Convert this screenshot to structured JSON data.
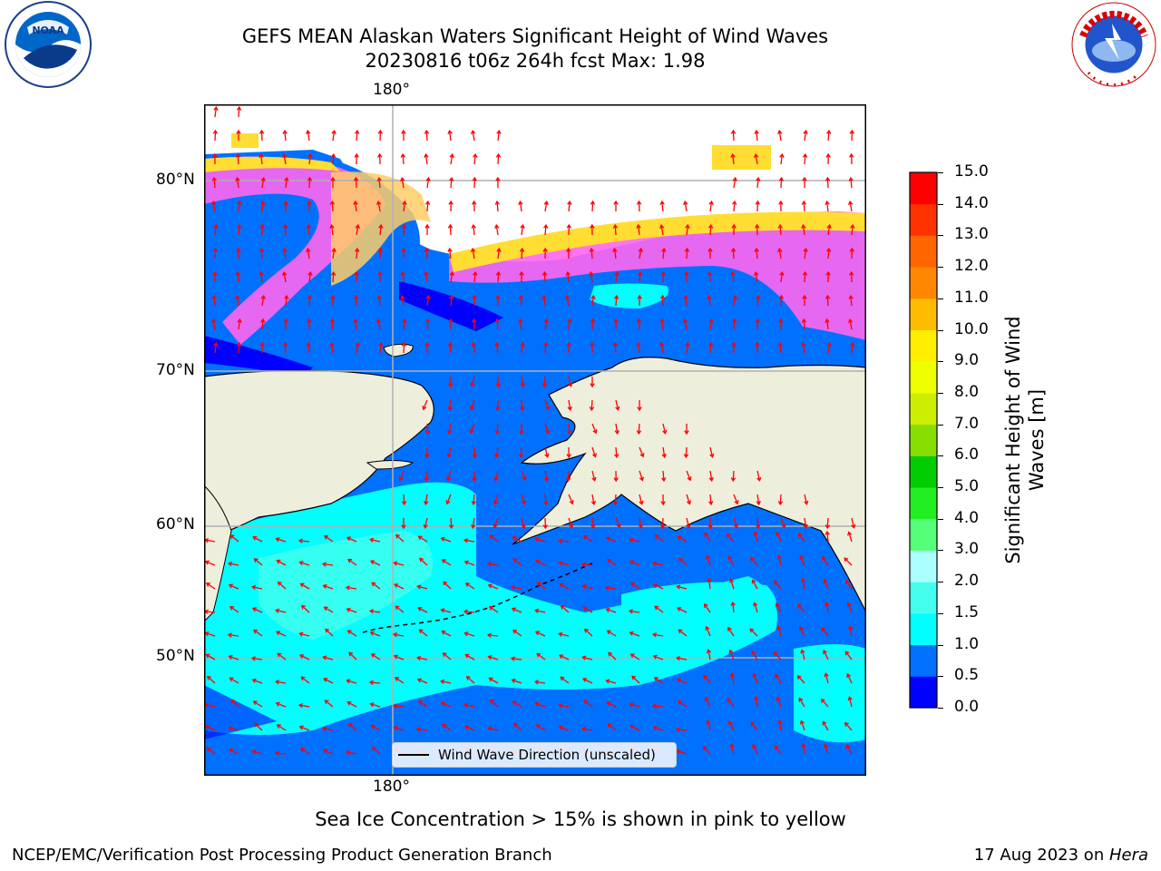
{
  "title": {
    "line1": "GEFS MEAN Alaskan Waters Significant Height of Wind Waves",
    "line2": "20230816 t06z 264h fcst   Max: 1.98"
  },
  "logos": {
    "left": {
      "name": "NOAA",
      "ring_text": "NATIONAL OCEANIC AND ATMOSPHERIC ADMINISTRATION · U.S. DEPARTMENT OF COMMERCE"
    },
    "right": {
      "name": "National Weather Service",
      "ring_text": "NATIONAL WEATHER SERVICE"
    }
  },
  "map": {
    "lon_label_top": "180°",
    "lon_label_bottom": "180°",
    "lat_labels": [
      "80°N",
      "70°N",
      "60°N",
      "50°N"
    ],
    "land_color": "#eeeedd",
    "arrow_color": "#ff0000",
    "legend_label": "Wind Wave Direction (unscaled)"
  },
  "colorbar": {
    "label": "Significant Height of Wind Waves [m]",
    "label_line1": "Significant Height of Wind",
    "label_line2": "Waves [m]",
    "ticks": [
      "15.0",
      "14.0",
      "13.0",
      "12.0",
      "11.0",
      "10.0",
      "9.0",
      "8.0",
      "7.0",
      "6.0",
      "5.0",
      "4.0",
      "3.0",
      "2.0",
      "1.5",
      "1.0",
      "0.5",
      "0.0"
    ],
    "colors": [
      "#0000ff",
      "#0070ff",
      "#00ffff",
      "#44ffee",
      "#aaffff",
      "#55ff77",
      "#22ee22",
      "#00cc00",
      "#88dd00",
      "#ccee00",
      "#eeff00",
      "#ffee00",
      "#ffbb00",
      "#ff8800",
      "#ff6600",
      "#ff3300",
      "#ff0000"
    ]
  },
  "ice_note": "Sea Ice Concentration > 15% is shown in pink to yellow",
  "footer": {
    "left": "NCEP/EMC/Verification Post Processing Product Generation Branch",
    "date": "17 Aug 2023 on ",
    "machine": "Hera"
  }
}
